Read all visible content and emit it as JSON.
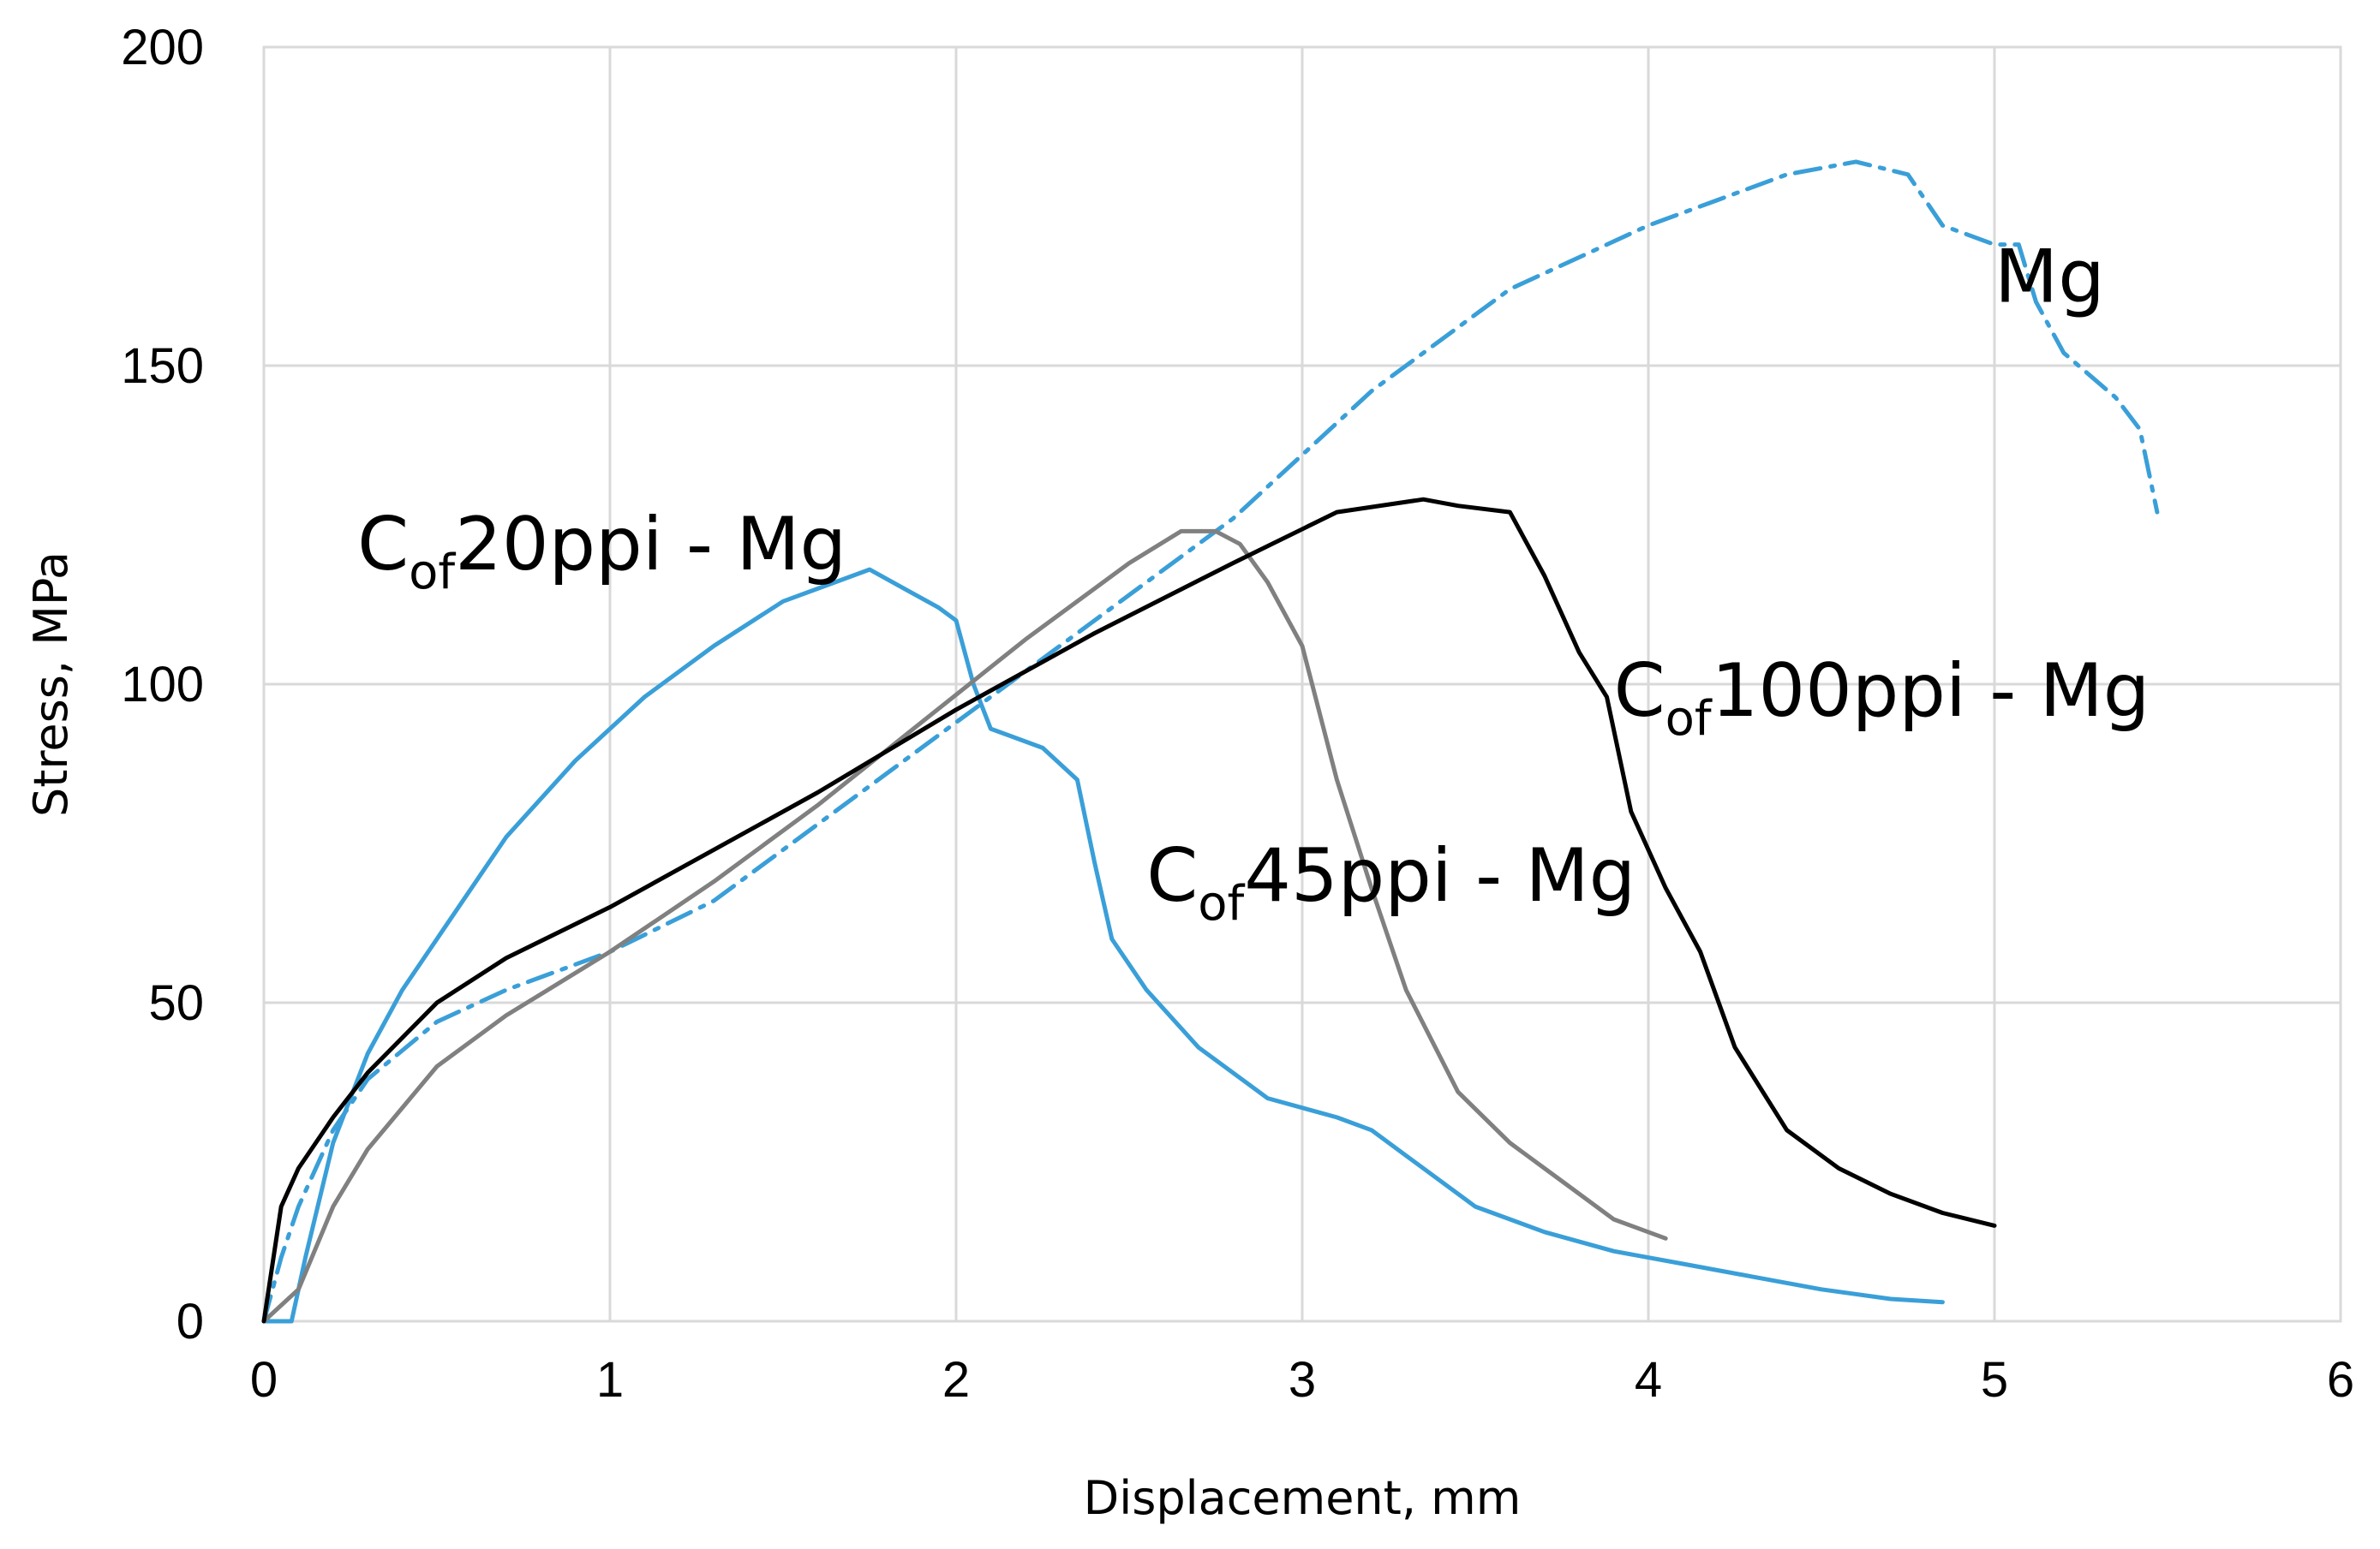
{
  "chart_data": {
    "type": "line",
    "title": "",
    "xlabel": "Displacement, mm",
    "ylabel": "Stress, MPa",
    "xlim": [
      0,
      6
    ],
    "ylim": [
      0,
      200
    ],
    "xticks": [
      0,
      1,
      2,
      3,
      4,
      5,
      6
    ],
    "xtick_labels": [
      "0",
      "1",
      "2",
      "3",
      "4",
      "5",
      "6"
    ],
    "yticks": [
      0,
      50,
      100,
      150,
      200
    ],
    "ytick_labels": [
      "0",
      "50",
      "100",
      "150",
      "200"
    ],
    "grid": true,
    "legend": "none",
    "series": [
      {
        "name": "Mg",
        "label_main": "Mg",
        "label_sub": "",
        "label_suffix": "",
        "label_anchor": [
          5.0,
          160
        ],
        "color": "#3a9fd8",
        "style": "dash-dot",
        "x": [
          0.0,
          0.05,
          0.1,
          0.2,
          0.3,
          0.5,
          0.7,
          1.0,
          1.3,
          1.6,
          2.0,
          2.4,
          2.8,
          3.2,
          3.6,
          4.0,
          4.2,
          4.4,
          4.6,
          4.75,
          4.85,
          5.0,
          5.07,
          5.12,
          5.2,
          5.35,
          5.42,
          5.47
        ],
        "y": [
          0,
          10,
          18,
          30,
          38,
          47,
          52,
          58,
          66,
          78,
          94,
          110,
          126,
          146,
          162,
          172,
          176,
          180,
          182,
          180,
          172,
          169,
          169,
          160,
          152,
          145,
          140,
          127
        ]
      },
      {
        "name": "Cof20ppi - Mg",
        "label_main": "C",
        "label_sub": "of",
        "label_suffix": "20ppi - Mg",
        "label_anchor": [
          0.27,
          118
        ],
        "color": "#3a9fd8",
        "style": "solid",
        "x": [
          0.0,
          0.08,
          0.12,
          0.2,
          0.3,
          0.4,
          0.55,
          0.7,
          0.9,
          1.1,
          1.3,
          1.5,
          1.65,
          1.75,
          1.85,
          1.95,
          2.0,
          2.05,
          2.1,
          2.15,
          2.25,
          2.35,
          2.4,
          2.45,
          2.55,
          2.7,
          2.9,
          3.1,
          3.2,
          3.3,
          3.5,
          3.7,
          3.9,
          4.1,
          4.3,
          4.5,
          4.7,
          4.85
        ],
        "y": [
          0,
          0,
          10,
          28,
          42,
          52,
          64,
          76,
          88,
          98,
          106,
          113,
          116,
          118,
          115,
          112,
          110,
          100,
          93,
          92,
          90,
          85,
          72,
          60,
          52,
          43,
          35,
          32,
          30,
          26,
          18,
          14,
          11,
          9,
          7,
          5,
          3.5,
          3
        ]
      },
      {
        "name": "Cof45ppi - Mg",
        "label_main": "C",
        "label_sub": "of",
        "label_suffix": "45ppi - Mg",
        "label_anchor": [
          2.55,
          66
        ],
        "color": "#808080",
        "style": "solid",
        "x": [
          0.0,
          0.1,
          0.2,
          0.3,
          0.5,
          0.7,
          1.0,
          1.3,
          1.6,
          1.9,
          2.2,
          2.5,
          2.65,
          2.75,
          2.82,
          2.9,
          3.0,
          3.1,
          3.2,
          3.3,
          3.45,
          3.6,
          3.75,
          3.9,
          4.05
        ],
        "y": [
          0,
          5,
          18,
          27,
          40,
          48,
          58,
          69,
          81,
          94,
          107,
          119,
          124,
          124,
          122,
          116,
          106,
          85,
          68,
          52,
          36,
          28,
          22,
          16,
          13
        ]
      },
      {
        "name": "Cof100ppi - Mg",
        "label_main": "C",
        "label_sub": "of",
        "label_suffix": "100ppi - Mg",
        "label_anchor": [
          3.9,
          95
        ],
        "color": "#000000",
        "style": "solid",
        "x": [
          0.0,
          0.05,
          0.1,
          0.2,
          0.3,
          0.5,
          0.7,
          1.0,
          1.3,
          1.6,
          2.0,
          2.4,
          2.8,
          3.1,
          3.35,
          3.45,
          3.6,
          3.7,
          3.8,
          3.88,
          3.95,
          4.05,
          4.15,
          4.25,
          4.4,
          4.55,
          4.7,
          4.85,
          5.0
        ],
        "y": [
          0,
          18,
          24,
          32,
          39,
          50,
          57,
          65,
          74,
          83,
          96,
          108,
          119,
          127,
          129,
          128,
          127,
          117,
          105,
          98,
          80,
          68,
          58,
          43,
          30,
          24,
          20,
          17,
          15
        ]
      }
    ]
  }
}
